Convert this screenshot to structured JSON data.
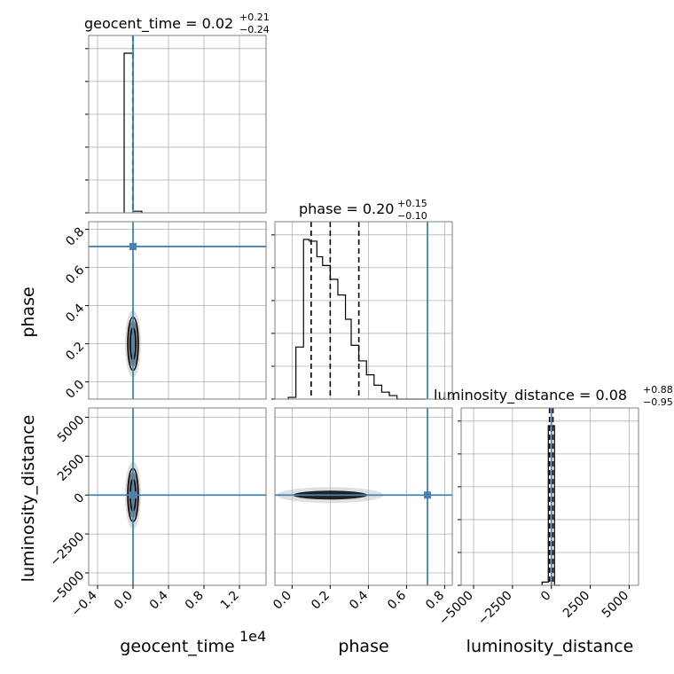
{
  "chart_data": {
    "type": "corner",
    "parameters": [
      "geocent_time",
      "phase",
      "luminosity_distance"
    ],
    "axis_labels": {
      "geocent_time": "geocent_time",
      "phase": "phase",
      "luminosity_distance": "luminosity_distance",
      "geocent_time_offset": "1e4"
    },
    "titles": [
      {
        "param": "geocent_time",
        "prefix": "geocent_time = 0.02",
        "plus": "+0.21",
        "minus": "−0.24"
      },
      {
        "param": "phase",
        "prefix": "phase = 0.20",
        "plus": "+0.15",
        "minus": "−0.10"
      },
      {
        "param": "luminosity_distance",
        "prefix": "luminosity_distance = 0.08",
        "plus": "+0.88",
        "minus": "−0.95"
      }
    ],
    "ticks": {
      "geocent_time": [
        "−0.4",
        "0.0",
        "0.4",
        "0.8",
        "1.2"
      ],
      "phase": [
        "0.0",
        "0.2",
        "0.4",
        "0.6",
        "0.8"
      ],
      "luminosity_distance": [
        "−5000",
        "−2500",
        "0",
        "2500",
        "5000"
      ]
    },
    "ranges": {
      "geocent_time": [
        -0.5,
        1.5
      ],
      "phase": [
        -0.09,
        0.84
      ],
      "luminosity_distance": [
        -5800,
        5600
      ]
    },
    "truths": {
      "geocent_time": 0.0,
      "phase": 0.71,
      "luminosity_distance": 0
    },
    "truth_color": "#4682b4",
    "histograms": {
      "geocent_time": {
        "bin_edges": [
          -0.1,
          0.0,
          0.1
        ],
        "counts": [
          1.0,
          0.01
        ],
        "quantiles": [
          -0.003,
          0.0,
          0.0
        ]
      },
      "phase": {
        "bin_edges": [
          -0.02,
          0.02,
          0.06,
          0.09,
          0.13,
          0.16,
          0.2,
          0.24,
          0.28,
          0.31,
          0.35,
          0.39,
          0.43,
          0.47,
          0.51,
          0.55,
          0.59,
          0.63,
          0.67,
          0.7
        ],
        "counts": [
          0.01,
          0.3,
          0.92,
          0.91,
          0.82,
          0.77,
          0.69,
          0.6,
          0.46,
          0.31,
          0.22,
          0.14,
          0.08,
          0.04,
          0.02,
          0.0,
          0.0,
          0.0,
          0.0
        ],
        "quantiles": [
          0.1,
          0.2,
          0.35
        ]
      },
      "luminosity_distance": {
        "bin_edges": [
          -600,
          -200,
          200,
          600
        ],
        "counts": [
          0.02,
          1.0,
          0.0
        ],
        "quantiles": [
          -120,
          0,
          100
        ]
      }
    },
    "grid": true
  }
}
